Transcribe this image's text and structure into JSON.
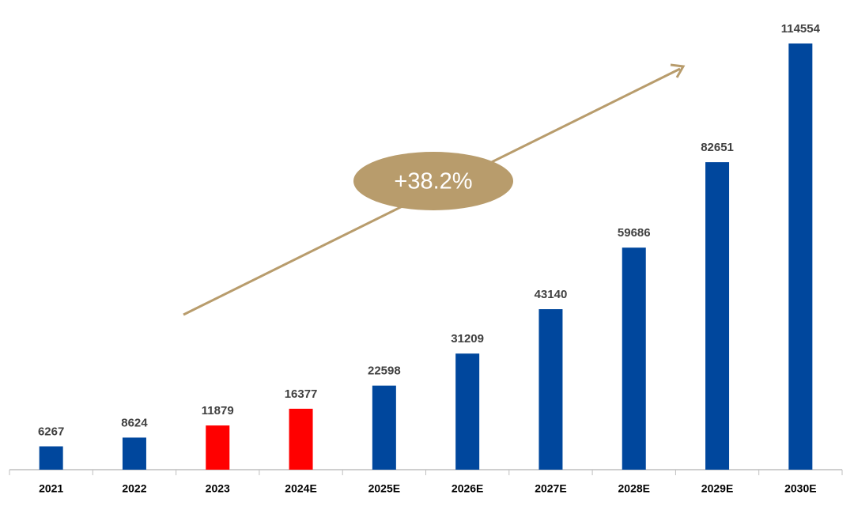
{
  "chart_data": {
    "type": "bar",
    "categories": [
      "2021",
      "2022",
      "2023",
      "2024E",
      "2025E",
      "2026E",
      "2027E",
      "2028E",
      "2029E",
      "2030E"
    ],
    "values": [
      6267,
      8624,
      11879,
      16377,
      22598,
      31209,
      43140,
      59686,
      82651,
      114554
    ],
    "colors": [
      "#00479d",
      "#00479d",
      "#ff0000",
      "#ff0000",
      "#00479d",
      "#00479d",
      "#00479d",
      "#00479d",
      "#00479d",
      "#00479d"
    ],
    "annotation": "+38.2%",
    "annotation_color": "#b89c6c"
  }
}
